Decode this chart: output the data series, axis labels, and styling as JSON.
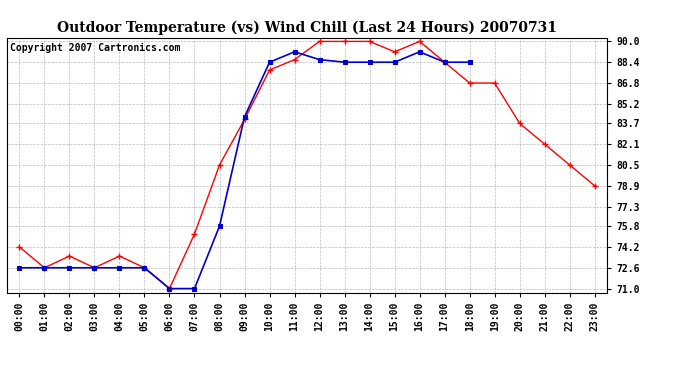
{
  "title": "Outdoor Temperature (vs) Wind Chill (Last 24 Hours) 20070731",
  "copyright": "Copyright 2007 Cartronics.com",
  "x_labels": [
    "00:00",
    "01:00",
    "02:00",
    "03:00",
    "04:00",
    "05:00",
    "06:00",
    "07:00",
    "08:00",
    "09:00",
    "10:00",
    "11:00",
    "12:00",
    "13:00",
    "14:00",
    "15:00",
    "16:00",
    "17:00",
    "18:00",
    "19:00",
    "20:00",
    "21:00",
    "22:00",
    "23:00"
  ],
  "temp_red": [
    74.2,
    72.6,
    73.5,
    72.6,
    73.5,
    72.6,
    71.0,
    75.2,
    80.5,
    84.0,
    87.8,
    88.6,
    90.0,
    90.0,
    90.0,
    89.2,
    90.0,
    88.4,
    86.8,
    86.8,
    83.7,
    82.1,
    80.5,
    78.9
  ],
  "temp_blue": [
    72.6,
    72.6,
    72.6,
    72.6,
    72.6,
    72.6,
    71.0,
    71.0,
    75.8,
    84.2,
    88.4,
    89.2,
    88.6,
    88.4,
    88.4,
    88.4,
    89.2,
    88.4,
    88.4,
    null,
    null,
    null,
    null,
    null
  ],
  "ylim": [
    71.0,
    90.0
  ],
  "yticks": [
    71.0,
    72.6,
    74.2,
    75.8,
    77.3,
    78.9,
    80.5,
    82.1,
    83.7,
    85.2,
    86.8,
    88.4,
    90.0
  ],
  "red_color": "#ff0000",
  "blue_color": "#0000cc",
  "grid_color": "#bbbbbb",
  "bg_color": "#ffffff",
  "title_fontsize": 10,
  "copyright_fontsize": 7,
  "tick_fontsize": 7
}
